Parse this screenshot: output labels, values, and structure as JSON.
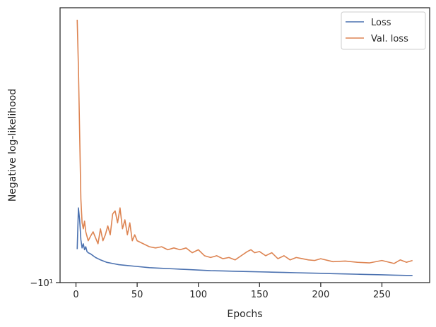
{
  "chart_data": {
    "type": "line",
    "xlabel": "Epochs",
    "ylabel": "Negative log-likelihood",
    "xlim": [
      -13,
      289
    ],
    "ylim": [
      -10.0,
      -5.4
    ],
    "y_scale": "symlog",
    "grid": false,
    "legend_placement": "top-right",
    "x_ticks": [
      0,
      50,
      100,
      150,
      200,
      250
    ],
    "x_tick_labels": [
      "0",
      "50",
      "100",
      "150",
      "200",
      "250"
    ],
    "y_ticks": [
      -10
    ],
    "y_tick_labels": [
      "−10¹"
    ],
    "series": [
      {
        "name": "Loss",
        "color": "#4c72b0",
        "x": [
          1,
          2,
          3,
          4,
          5,
          6,
          7,
          8,
          9,
          10,
          12,
          14,
          16,
          18,
          20,
          25,
          30,
          35,
          40,
          50,
          60,
          70,
          80,
          90,
          100,
          110,
          120,
          130,
          140,
          150,
          160,
          170,
          180,
          190,
          200,
          210,
          220,
          230,
          240,
          250,
          260,
          270,
          275
        ],
        "values": [
          -9.44,
          -8.75,
          -8.95,
          -9.28,
          -9.42,
          -9.35,
          -9.45,
          -9.4,
          -9.48,
          -9.5,
          -9.52,
          -9.55,
          -9.58,
          -9.6,
          -9.62,
          -9.66,
          -9.68,
          -9.7,
          -9.71,
          -9.73,
          -9.75,
          -9.76,
          -9.77,
          -9.78,
          -9.79,
          -9.8,
          -9.805,
          -9.81,
          -9.815,
          -9.82,
          -9.825,
          -9.83,
          -9.835,
          -9.84,
          -9.845,
          -9.85,
          -9.855,
          -9.86,
          -9.865,
          -9.87,
          -9.875,
          -9.88,
          -9.88
        ]
      },
      {
        "name": "Val. loss",
        "color": "#dd8452",
        "x": [
          1,
          2,
          3,
          4,
          5,
          6,
          7,
          8,
          10,
          12,
          14,
          16,
          18,
          20,
          22,
          24,
          26,
          28,
          30,
          32,
          34,
          36,
          38,
          40,
          42,
          44,
          46,
          48,
          50,
          55,
          60,
          65,
          70,
          75,
          80,
          85,
          90,
          95,
          100,
          105,
          110,
          115,
          120,
          125,
          130,
          135,
          140,
          143,
          146,
          150,
          155,
          160,
          165,
          170,
          175,
          180,
          185,
          190,
          195,
          200,
          210,
          220,
          230,
          240,
          250,
          260,
          265,
          270,
          275
        ],
        "values": [
          -5.6,
          -6.4,
          -7.5,
          -8.6,
          -9.0,
          -9.1,
          -8.97,
          -9.15,
          -9.3,
          -9.22,
          -9.15,
          -9.25,
          -9.35,
          -9.1,
          -9.3,
          -9.2,
          -9.05,
          -9.2,
          -8.85,
          -8.8,
          -9.0,
          -8.75,
          -9.1,
          -8.95,
          -9.2,
          -9.0,
          -9.3,
          -9.2,
          -9.3,
          -9.35,
          -9.4,
          -9.42,
          -9.4,
          -9.45,
          -9.42,
          -9.45,
          -9.42,
          -9.5,
          -9.45,
          -9.55,
          -9.58,
          -9.55,
          -9.6,
          -9.58,
          -9.62,
          -9.55,
          -9.48,
          -9.45,
          -9.5,
          -9.48,
          -9.55,
          -9.5,
          -9.6,
          -9.55,
          -9.62,
          -9.58,
          -9.6,
          -9.62,
          -9.63,
          -9.6,
          -9.65,
          -9.64,
          -9.66,
          -9.67,
          -9.63,
          -9.68,
          -9.62,
          -9.66,
          -9.63
        ]
      }
    ]
  }
}
